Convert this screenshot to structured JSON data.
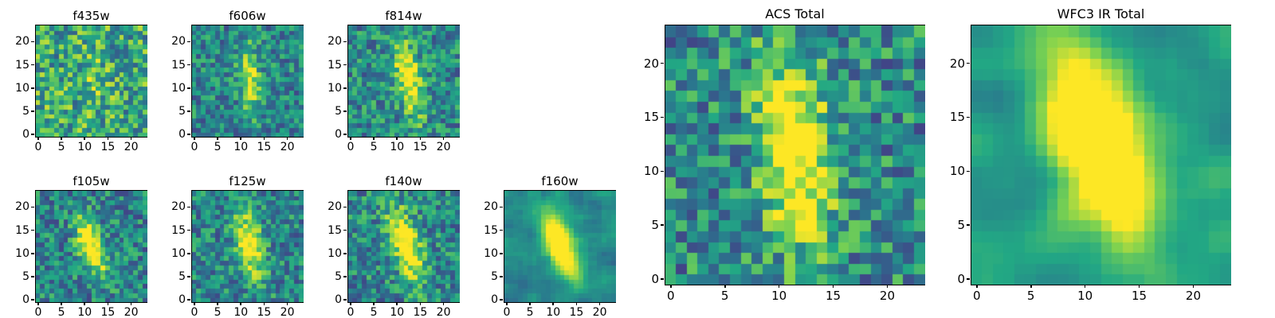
{
  "figure": {
    "background": "#ffffff",
    "frame_color": "#000000",
    "colormap": {
      "name": "viridis",
      "stops": [
        "#440154",
        "#414487",
        "#2a788e",
        "#22a884",
        "#7ad151",
        "#fde725"
      ]
    }
  },
  "chart_data": [
    {
      "type": "heatmap",
      "title": "f435w",
      "grid": 24,
      "xlim": [
        -0.5,
        23.5
      ],
      "ylim": [
        -0.5,
        23.5
      ],
      "x_ticks": [
        0,
        5,
        10,
        15,
        20
      ],
      "y_ticks": [
        0,
        5,
        10,
        15,
        20
      ],
      "colormap": "viridis",
      "grid_lines": false,
      "seed": 11,
      "noise_base": 0.3,
      "noise_amp": 0.62,
      "smooth": 0,
      "galaxy": {
        "amp": 0.12,
        "cx": 12,
        "cy": 12,
        "sx": 2.2,
        "sy": 5.0,
        "angle_deg": 10
      }
    },
    {
      "type": "heatmap",
      "title": "f606w",
      "grid": 24,
      "xlim": [
        -0.5,
        23.5
      ],
      "ylim": [
        -0.5,
        23.5
      ],
      "x_ticks": [
        0,
        5,
        10,
        15,
        20
      ],
      "y_ticks": [
        0,
        5,
        10,
        15,
        20
      ],
      "colormap": "viridis",
      "grid_lines": false,
      "seed": 22,
      "noise_base": 0.22,
      "noise_amp": 0.48,
      "smooth": 0,
      "galaxy": {
        "amp": 0.5,
        "cx": 12,
        "cy": 12,
        "sx": 1.6,
        "sy": 5.0,
        "angle_deg": 5
      }
    },
    {
      "type": "heatmap",
      "title": "f814w",
      "grid": 24,
      "xlim": [
        -0.5,
        23.5
      ],
      "ylim": [
        -0.5,
        23.5
      ],
      "x_ticks": [
        0,
        5,
        10,
        15,
        20
      ],
      "y_ticks": [
        0,
        5,
        10,
        15,
        20
      ],
      "colormap": "viridis",
      "grid_lines": false,
      "seed": 33,
      "noise_base": 0.22,
      "noise_amp": 0.5,
      "smooth": 0,
      "galaxy": {
        "amp": 0.62,
        "cx": 12.5,
        "cy": 12,
        "sx": 1.8,
        "sy": 6.0,
        "angle_deg": 12
      }
    },
    {
      "type": "heatmap",
      "title": "f105w",
      "grid": 24,
      "xlim": [
        -0.5,
        23.5
      ],
      "ylim": [
        -0.5,
        23.5
      ],
      "x_ticks": [
        0,
        5,
        10,
        15,
        20
      ],
      "y_ticks": [
        0,
        5,
        10,
        15,
        20
      ],
      "colormap": "viridis",
      "grid_lines": false,
      "seed": 44,
      "noise_base": 0.2,
      "noise_amp": 0.5,
      "smooth": 0,
      "galaxy": {
        "amp": 0.72,
        "cx": 11.5,
        "cy": 11.5,
        "sx": 1.7,
        "sy": 4.5,
        "angle_deg": 18
      }
    },
    {
      "type": "heatmap",
      "title": "f125w",
      "grid": 24,
      "xlim": [
        -0.5,
        23.5
      ],
      "ylim": [
        -0.5,
        23.5
      ],
      "x_ticks": [
        0,
        5,
        10,
        15,
        20
      ],
      "y_ticks": [
        0,
        5,
        10,
        15,
        20
      ],
      "colormap": "viridis",
      "grid_lines": false,
      "seed": 55,
      "noise_base": 0.22,
      "noise_amp": 0.48,
      "smooth": 0,
      "galaxy": {
        "amp": 0.66,
        "cx": 12,
        "cy": 12,
        "sx": 1.8,
        "sy": 5.0,
        "angle_deg": 12
      }
    },
    {
      "type": "heatmap",
      "title": "f140w",
      "grid": 24,
      "xlim": [
        -0.5,
        23.5
      ],
      "ylim": [
        -0.5,
        23.5
      ],
      "x_ticks": [
        0,
        5,
        10,
        15,
        20
      ],
      "y_ticks": [
        0,
        5,
        10,
        15,
        20
      ],
      "colormap": "viridis",
      "grid_lines": false,
      "seed": 66,
      "noise_base": 0.22,
      "noise_amp": 0.5,
      "smooth": 0,
      "galaxy": {
        "amp": 0.75,
        "cx": 12,
        "cy": 12,
        "sx": 2.0,
        "sy": 5.5,
        "angle_deg": 18
      }
    },
    {
      "type": "heatmap",
      "title": "f160w",
      "grid": 24,
      "xlim": [
        -0.5,
        23.5
      ],
      "ylim": [
        -0.5,
        23.5
      ],
      "x_ticks": [
        0,
        5,
        10,
        15,
        20
      ],
      "y_ticks": [
        0,
        5,
        10,
        15,
        20
      ],
      "colormap": "viridis",
      "grid_lines": false,
      "seed": 77,
      "noise_base": 0.24,
      "noise_amp": 0.46,
      "smooth": 1,
      "galaxy": {
        "amp": 0.85,
        "cx": 11.5,
        "cy": 12,
        "sx": 2.0,
        "sy": 5.5,
        "angle_deg": 22
      }
    },
    {
      "type": "heatmap",
      "title": "ACS Total",
      "grid": 24,
      "xlim": [
        -0.5,
        23.5
      ],
      "ylim": [
        -0.5,
        23.5
      ],
      "x_ticks": [
        0,
        5,
        10,
        15,
        20
      ],
      "y_ticks": [
        0,
        5,
        10,
        15,
        20
      ],
      "colormap": "viridis",
      "grid_lines": false,
      "seed": 88,
      "noise_base": 0.2,
      "noise_amp": 0.55,
      "smooth": 0,
      "galaxy": {
        "amp": 0.7,
        "cx": 11.5,
        "cy": 12,
        "sx": 2.2,
        "sy": 6.5,
        "angle_deg": 6
      }
    },
    {
      "type": "heatmap",
      "title": "WFC3 IR Total",
      "grid": 24,
      "xlim": [
        -0.5,
        23.5
      ],
      "ylim": [
        -0.5,
        23.5
      ],
      "x_ticks": [
        0,
        5,
        10,
        15,
        20
      ],
      "y_ticks": [
        0,
        5,
        10,
        15,
        20
      ],
      "colormap": "viridis",
      "grid_lines": false,
      "seed": 99,
      "noise_base": 0.18,
      "noise_amp": 0.75,
      "smooth": 2,
      "galaxy": {
        "amp": 0.9,
        "cx": 11.5,
        "cy": 12.5,
        "sx": 2.6,
        "sy": 6.5,
        "angle_deg": 20
      }
    }
  ]
}
